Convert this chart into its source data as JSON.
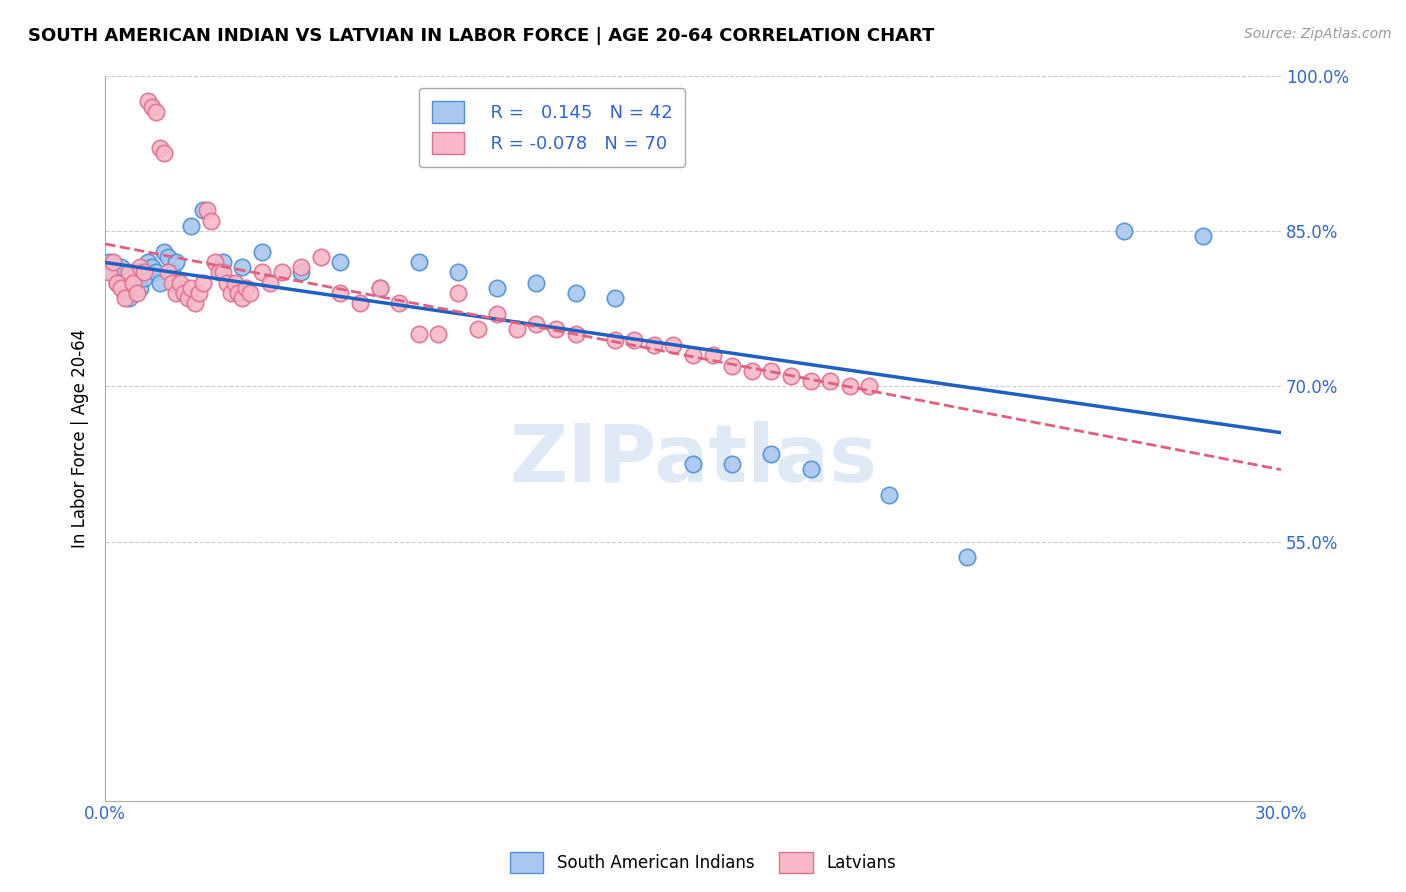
{
  "title": "SOUTH AMERICAN INDIAN VS LATVIAN IN LABOR FORCE | AGE 20-64 CORRELATION CHART",
  "source": "Source: ZipAtlas.com",
  "ylabel": "In Labor Force | Age 20-64",
  "xlim": [
    0.0,
    0.3
  ],
  "ylim": [
    0.3,
    1.0
  ],
  "xticks": [
    0.0,
    0.05,
    0.1,
    0.15,
    0.2,
    0.25,
    0.3
  ],
  "xtick_labels": [
    "0.0%",
    "",
    "",
    "",
    "",
    "",
    "30.0%"
  ],
  "ytick_positions": [
    0.55,
    0.7,
    0.85,
    1.0
  ],
  "ytick_labels": [
    "55.0%",
    "70.0%",
    "85.0%",
    "100.0%"
  ],
  "blue_R": 0.145,
  "blue_N": 42,
  "pink_R": -0.078,
  "pink_N": 70,
  "blue_color": "#A8C8F0",
  "pink_color": "#F8B8C8",
  "blue_edge_color": "#5090D0",
  "pink_edge_color": "#E07090",
  "blue_line_color": "#2060C0",
  "pink_line_color": "#E06080",
  "watermark": "ZIPatlas",
  "watermark_color": "#C8D8F0",
  "blue_points": [
    [
      0.001,
      0.82
    ],
    [
      0.002,
      0.81
    ],
    [
      0.003,
      0.8
    ],
    [
      0.004,
      0.815
    ],
    [
      0.005,
      0.79
    ],
    [
      0.006,
      0.785
    ],
    [
      0.007,
      0.8
    ],
    [
      0.008,
      0.81
    ],
    [
      0.009,
      0.795
    ],
    [
      0.01,
      0.805
    ],
    [
      0.011,
      0.82
    ],
    [
      0.012,
      0.815
    ],
    [
      0.013,
      0.81
    ],
    [
      0.014,
      0.8
    ],
    [
      0.015,
      0.83
    ],
    [
      0.016,
      0.825
    ],
    [
      0.017,
      0.81
    ],
    [
      0.018,
      0.82
    ],
    [
      0.019,
      0.795
    ],
    [
      0.02,
      0.79
    ],
    [
      0.022,
      0.855
    ],
    [
      0.025,
      0.87
    ],
    [
      0.03,
      0.82
    ],
    [
      0.035,
      0.815
    ],
    [
      0.04,
      0.83
    ],
    [
      0.05,
      0.81
    ],
    [
      0.06,
      0.82
    ],
    [
      0.07,
      0.795
    ],
    [
      0.08,
      0.82
    ],
    [
      0.09,
      0.81
    ],
    [
      0.1,
      0.795
    ],
    [
      0.11,
      0.8
    ],
    [
      0.12,
      0.79
    ],
    [
      0.13,
      0.785
    ],
    [
      0.15,
      0.625
    ],
    [
      0.16,
      0.625
    ],
    [
      0.17,
      0.635
    ],
    [
      0.18,
      0.62
    ],
    [
      0.2,
      0.595
    ],
    [
      0.22,
      0.535
    ],
    [
      0.26,
      0.85
    ],
    [
      0.28,
      0.845
    ]
  ],
  "pink_points": [
    [
      0.001,
      0.81
    ],
    [
      0.002,
      0.82
    ],
    [
      0.003,
      0.8
    ],
    [
      0.004,
      0.795
    ],
    [
      0.005,
      0.785
    ],
    [
      0.006,
      0.81
    ],
    [
      0.007,
      0.8
    ],
    [
      0.008,
      0.79
    ],
    [
      0.009,
      0.815
    ],
    [
      0.01,
      0.81
    ],
    [
      0.011,
      0.975
    ],
    [
      0.012,
      0.97
    ],
    [
      0.013,
      0.965
    ],
    [
      0.014,
      0.93
    ],
    [
      0.015,
      0.925
    ],
    [
      0.016,
      0.81
    ],
    [
      0.017,
      0.8
    ],
    [
      0.018,
      0.79
    ],
    [
      0.019,
      0.8
    ],
    [
      0.02,
      0.79
    ],
    [
      0.021,
      0.785
    ],
    [
      0.022,
      0.795
    ],
    [
      0.023,
      0.78
    ],
    [
      0.024,
      0.79
    ],
    [
      0.025,
      0.8
    ],
    [
      0.026,
      0.87
    ],
    [
      0.027,
      0.86
    ],
    [
      0.028,
      0.82
    ],
    [
      0.029,
      0.81
    ],
    [
      0.03,
      0.81
    ],
    [
      0.031,
      0.8
    ],
    [
      0.032,
      0.79
    ],
    [
      0.033,
      0.8
    ],
    [
      0.034,
      0.79
    ],
    [
      0.035,
      0.785
    ],
    [
      0.036,
      0.795
    ],
    [
      0.037,
      0.79
    ],
    [
      0.04,
      0.81
    ],
    [
      0.042,
      0.8
    ],
    [
      0.045,
      0.81
    ],
    [
      0.05,
      0.815
    ],
    [
      0.055,
      0.825
    ],
    [
      0.06,
      0.79
    ],
    [
      0.065,
      0.78
    ],
    [
      0.07,
      0.795
    ],
    [
      0.075,
      0.78
    ],
    [
      0.08,
      0.75
    ],
    [
      0.085,
      0.75
    ],
    [
      0.09,
      0.79
    ],
    [
      0.095,
      0.755
    ],
    [
      0.1,
      0.77
    ],
    [
      0.105,
      0.755
    ],
    [
      0.11,
      0.76
    ],
    [
      0.115,
      0.755
    ],
    [
      0.12,
      0.75
    ],
    [
      0.13,
      0.745
    ],
    [
      0.135,
      0.745
    ],
    [
      0.14,
      0.74
    ],
    [
      0.145,
      0.74
    ],
    [
      0.15,
      0.73
    ],
    [
      0.155,
      0.73
    ],
    [
      0.16,
      0.72
    ],
    [
      0.165,
      0.715
    ],
    [
      0.17,
      0.715
    ],
    [
      0.175,
      0.71
    ],
    [
      0.18,
      0.705
    ],
    [
      0.185,
      0.705
    ],
    [
      0.19,
      0.7
    ],
    [
      0.195,
      0.7
    ]
  ]
}
